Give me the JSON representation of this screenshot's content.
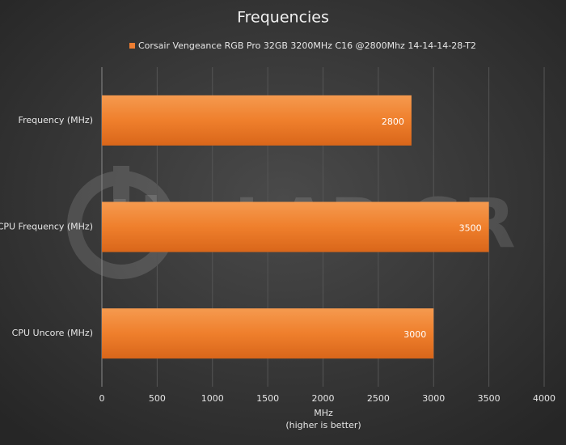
{
  "chart_data": {
    "type": "barh",
    "title": "Frequencies",
    "categories": [
      "Frequency (MHz)",
      "CPU Frequency (MHz)",
      "CPU Uncore (MHz)"
    ],
    "series": [
      {
        "name": "Corsair Vengeance RGB Pro 32GB 3200MHz C16 @2800Mhz 14-14-14-28-T2",
        "color": "#ed7d31",
        "values": [
          2800,
          3500,
          3000
        ]
      }
    ],
    "xlim": [
      0,
      4000
    ],
    "xticks": [
      0,
      500,
      1000,
      1500,
      2000,
      2500,
      3000,
      3500,
      4000
    ],
    "xlabel": "MHz",
    "xlabel_note": "(higher is better)",
    "watermark": "theLAB.GR",
    "grid": true,
    "legend": "top"
  }
}
